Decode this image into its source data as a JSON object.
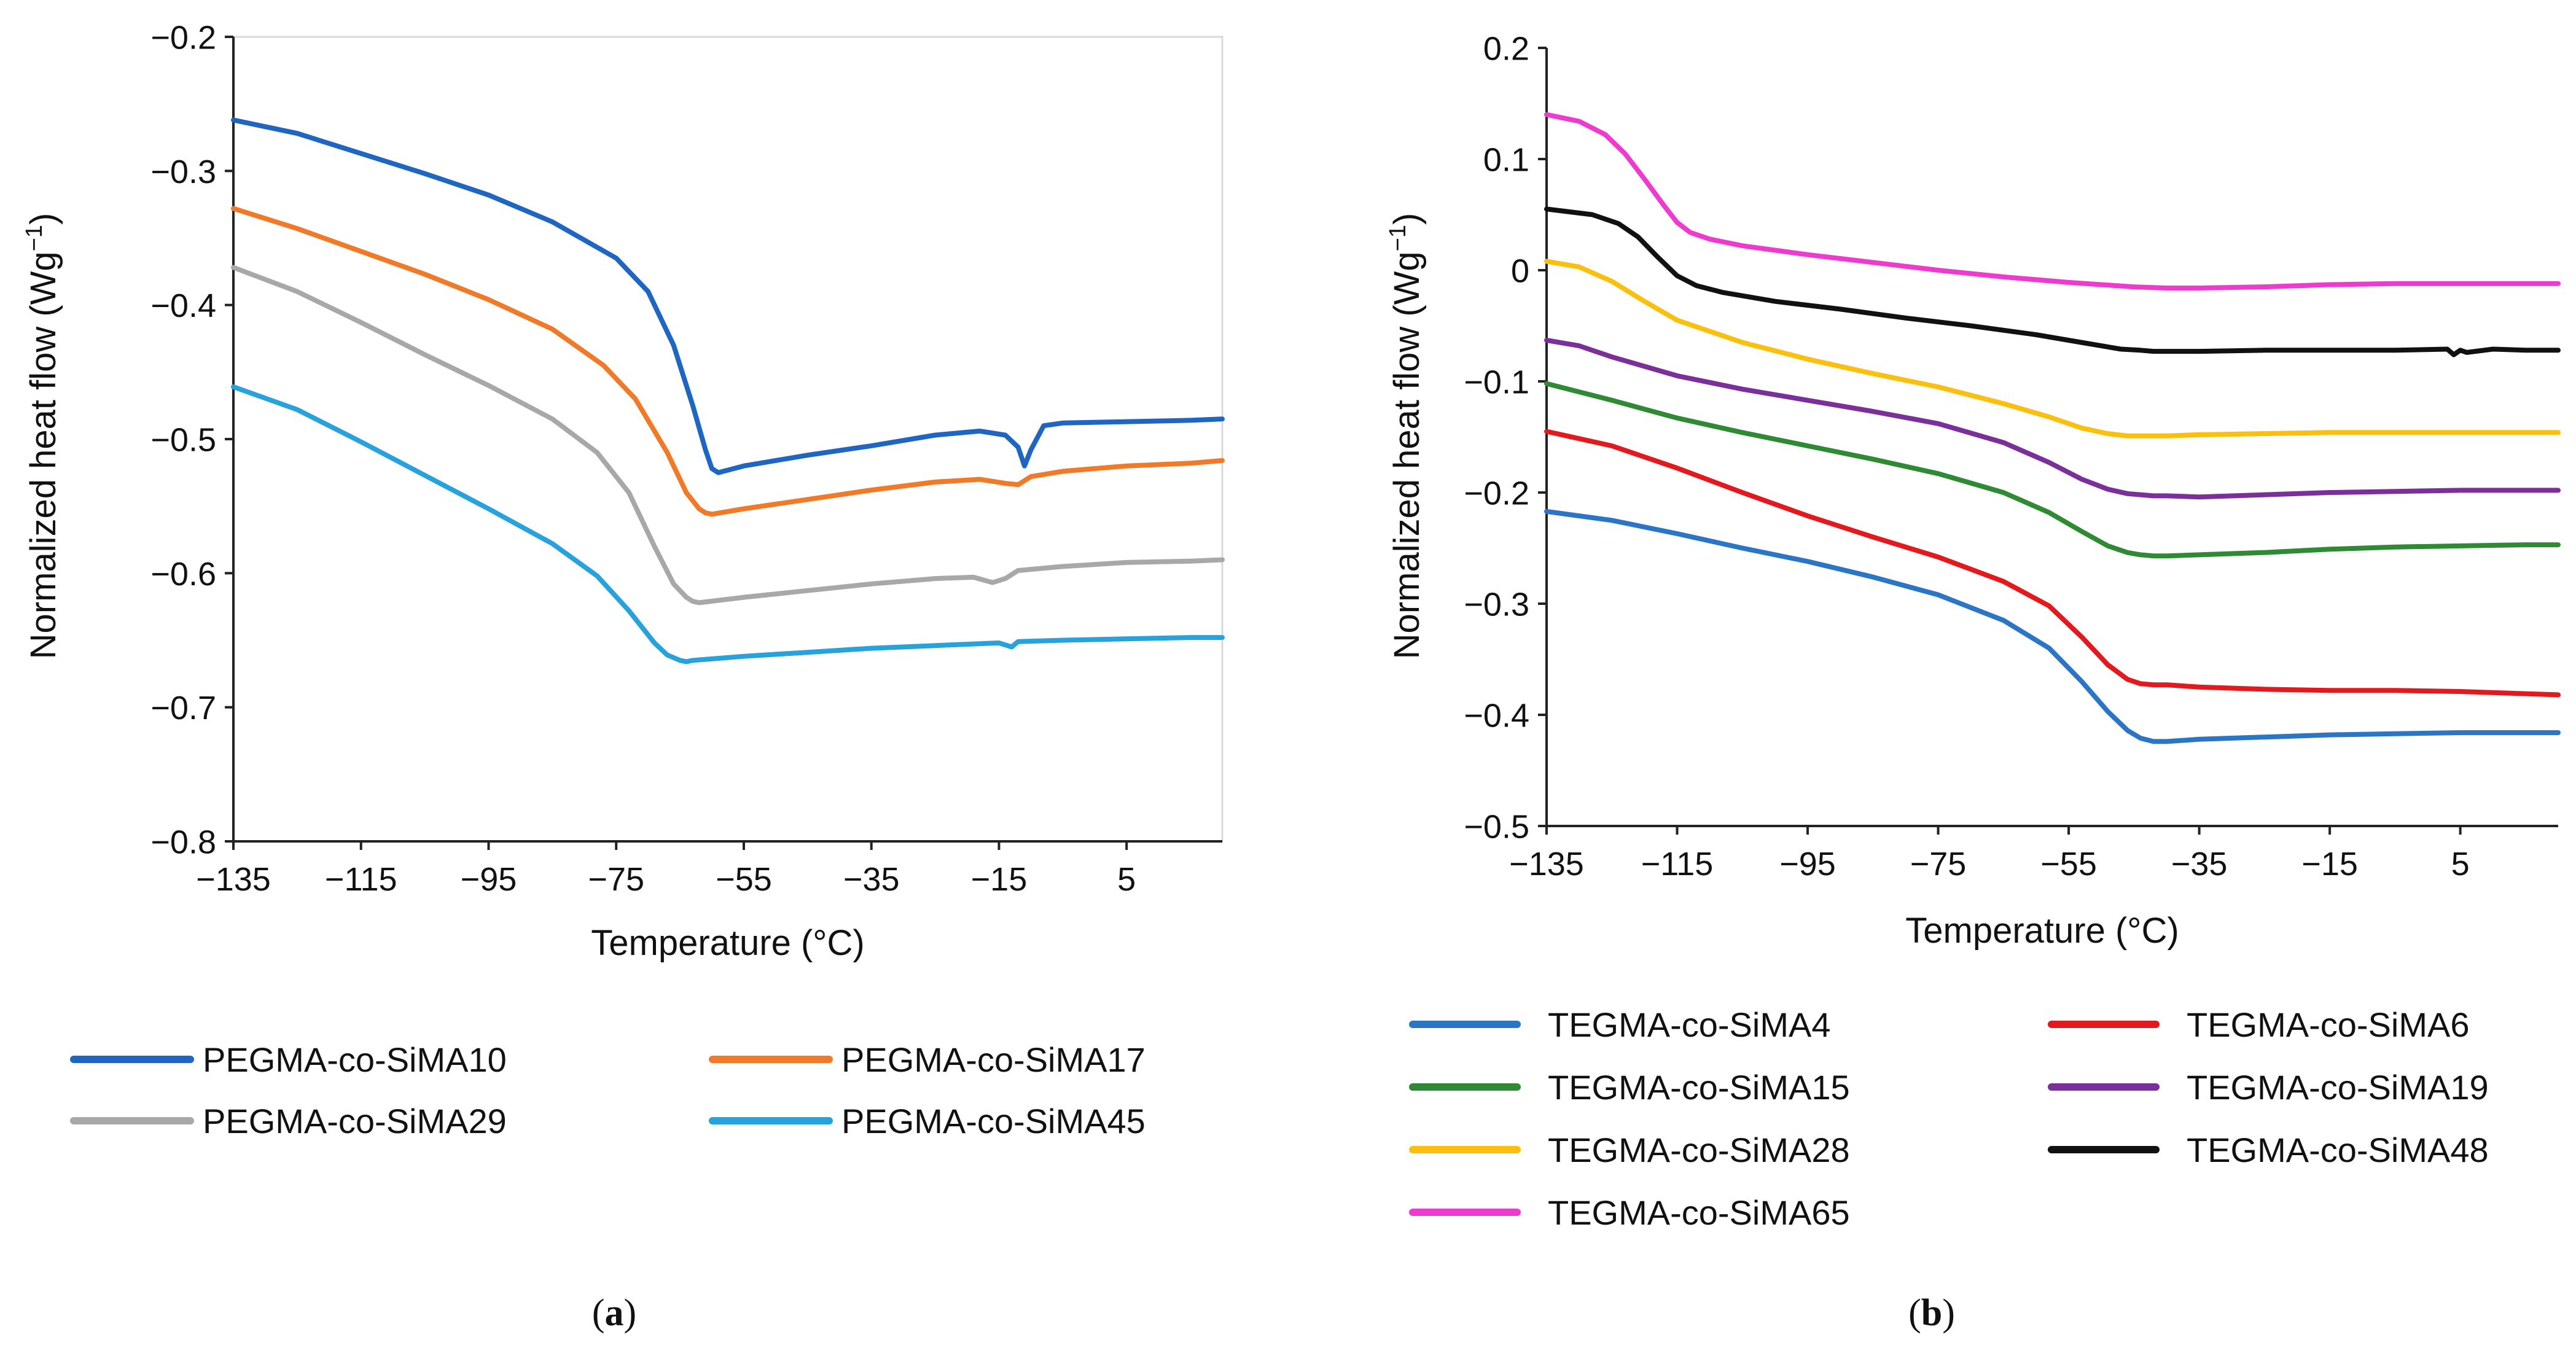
{
  "chart_data": [
    {
      "type": "line",
      "panel_label": "a",
      "xlabel": "Temperature (°C)",
      "ylabel": "Normalized heat flow (Wg",
      "ylabel_sup": "−1",
      "ylabel_close": ")",
      "xlim": [
        -135,
        20
      ],
      "ylim": [
        -0.8,
        -0.2
      ],
      "xticks": [
        -135,
        -115,
        -95,
        -75,
        -55,
        -35,
        -15,
        5
      ],
      "xtick_labels": [
        "−135",
        "−115",
        "−95",
        "−75",
        "−55",
        "−35",
        "−15",
        "5"
      ],
      "yticks": [
        -0.8,
        -0.7,
        -0.6,
        -0.5,
        -0.4,
        -0.3,
        -0.2
      ],
      "ytick_labels": [
        "−0.8",
        "−0.7",
        "−0.6",
        "−0.5",
        "−0.4",
        "−0.3",
        "−0.2"
      ],
      "grid": false,
      "legend_position": "bottom",
      "series": [
        {
          "name": "PEGMA-co-SiMA10",
          "color": "#1f66c2",
          "x": [
            -135,
            -125,
            -115,
            -105,
            -95,
            -85,
            -75,
            -70,
            -66,
            -63,
            -61,
            -60,
            -59,
            -55,
            -45,
            -35,
            -25,
            -18,
            -14,
            -12,
            -11,
            -10,
            -8,
            -5,
            5,
            15,
            20
          ],
          "y": [
            -0.262,
            -0.272,
            -0.287,
            -0.302,
            -0.318,
            -0.338,
            -0.365,
            -0.39,
            -0.43,
            -0.475,
            -0.508,
            -0.522,
            -0.525,
            -0.52,
            -0.512,
            -0.505,
            -0.497,
            -0.494,
            -0.497,
            -0.506,
            -0.52,
            -0.508,
            -0.49,
            -0.488,
            -0.487,
            -0.486,
            -0.485
          ]
        },
        {
          "name": "PEGMA-co-SiMA17",
          "color": "#f07a28",
          "x": [
            -135,
            -125,
            -115,
            -105,
            -95,
            -85,
            -77,
            -72,
            -67,
            -64,
            -62,
            -61,
            -60,
            -55,
            -45,
            -35,
            -25,
            -18,
            -14,
            -12,
            -10,
            -5,
            5,
            15,
            20
          ],
          "y": [
            -0.328,
            -0.343,
            -0.36,
            -0.377,
            -0.396,
            -0.418,
            -0.445,
            -0.47,
            -0.51,
            -0.54,
            -0.552,
            -0.555,
            -0.556,
            -0.552,
            -0.545,
            -0.538,
            -0.532,
            -0.53,
            -0.533,
            -0.534,
            -0.528,
            -0.524,
            -0.52,
            -0.518,
            -0.516
          ]
        },
        {
          "name": "PEGMA-co-SiMA29",
          "color": "#a8a8a8",
          "x": [
            -135,
            -125,
            -115,
            -105,
            -95,
            -85,
            -78,
            -73,
            -69,
            -66,
            -64,
            -63,
            -62,
            -55,
            -45,
            -35,
            -25,
            -19,
            -16,
            -14,
            -12,
            -5,
            5,
            15,
            20
          ],
          "y": [
            -0.372,
            -0.39,
            -0.413,
            -0.437,
            -0.46,
            -0.485,
            -0.51,
            -0.54,
            -0.58,
            -0.608,
            -0.618,
            -0.621,
            -0.622,
            -0.618,
            -0.613,
            -0.608,
            -0.604,
            -0.603,
            -0.607,
            -0.604,
            -0.598,
            -0.595,
            -0.592,
            -0.591,
            -0.59
          ]
        },
        {
          "name": "PEGMA-co-SiMA45",
          "color": "#27a2dc",
          "x": [
            -135,
            -125,
            -115,
            -105,
            -95,
            -85,
            -78,
            -73,
            -69,
            -67,
            -65,
            -64,
            -63,
            -55,
            -45,
            -35,
            -25,
            -15,
            -13,
            -12,
            -5,
            5,
            15,
            20
          ],
          "y": [
            -0.461,
            -0.478,
            -0.502,
            -0.527,
            -0.552,
            -0.578,
            -0.602,
            -0.628,
            -0.652,
            -0.661,
            -0.665,
            -0.666,
            -0.665,
            -0.662,
            -0.659,
            -0.656,
            -0.654,
            -0.652,
            -0.655,
            -0.651,
            -0.65,
            -0.649,
            -0.648,
            -0.648
          ]
        }
      ]
    },
    {
      "type": "line",
      "panel_label": "b",
      "xlabel": "Temperature (°C)",
      "ylabel": "Normalized heat flow (Wg",
      "ylabel_sup": "−1",
      "ylabel_close": ")",
      "xlim": [
        -135,
        20
      ],
      "ylim": [
        -0.5,
        0.2
      ],
      "xticks": [
        -135,
        -115,
        -95,
        -75,
        -55,
        -35,
        -15,
        5
      ],
      "xtick_labels": [
        "−135",
        "−115",
        "−95",
        "−75",
        "−55",
        "−35",
        "−15",
        "5"
      ],
      "yticks": [
        -0.5,
        -0.4,
        -0.3,
        -0.2,
        -0.1,
        0,
        0.1,
        0.2
      ],
      "ytick_labels": [
        "−0.5",
        "−0.4",
        "−0.3",
        "−0.2",
        "−0.1",
        "0",
        "0.1",
        "0.2"
      ],
      "grid": false,
      "legend_position": "bottom",
      "series": [
        {
          "name": "TEGMA-co-SiMA4",
          "color": "#2a75c6",
          "x": [
            -135,
            -125,
            -115,
            -105,
            -95,
            -85,
            -75,
            -65,
            -58,
            -53,
            -49,
            -46,
            -44,
            -42,
            -40,
            -35,
            -25,
            -15,
            -5,
            5,
            15,
            20
          ],
          "y": [
            -0.217,
            -0.225,
            -0.237,
            -0.25,
            -0.262,
            -0.276,
            -0.292,
            -0.315,
            -0.34,
            -0.37,
            -0.397,
            -0.414,
            -0.421,
            -0.424,
            -0.424,
            -0.422,
            -0.42,
            -0.418,
            -0.417,
            -0.416,
            -0.416,
            -0.416
          ]
        },
        {
          "name": "TEGMA-co-SiMA6",
          "color": "#e3191e",
          "x": [
            -135,
            -125,
            -115,
            -105,
            -95,
            -85,
            -75,
            -65,
            -58,
            -53,
            -49,
            -46,
            -44,
            -42,
            -40,
            -35,
            -25,
            -15,
            -5,
            5,
            15,
            20
          ],
          "y": [
            -0.145,
            -0.158,
            -0.178,
            -0.2,
            -0.221,
            -0.24,
            -0.258,
            -0.28,
            -0.302,
            -0.33,
            -0.355,
            -0.368,
            -0.372,
            -0.373,
            -0.373,
            -0.375,
            -0.377,
            -0.378,
            -0.378,
            -0.379,
            -0.381,
            -0.382
          ]
        },
        {
          "name": "TEGMA-co-SiMA15",
          "color": "#2e8b33",
          "x": [
            -135,
            -125,
            -115,
            -105,
            -95,
            -85,
            -75,
            -65,
            -58,
            -53,
            -49,
            -46,
            -44,
            -42,
            -40,
            -35,
            -25,
            -15,
            -5,
            5,
            15,
            20
          ],
          "y": [
            -0.102,
            -0.117,
            -0.133,
            -0.146,
            -0.158,
            -0.17,
            -0.183,
            -0.2,
            -0.218,
            -0.235,
            -0.248,
            -0.254,
            -0.256,
            -0.257,
            -0.257,
            -0.256,
            -0.254,
            -0.251,
            -0.249,
            -0.248,
            -0.247,
            -0.247
          ]
        },
        {
          "name": "TEGMA-co-SiMA19",
          "color": "#7b2f9a",
          "x": [
            -135,
            -130,
            -125,
            -115,
            -105,
            -95,
            -85,
            -75,
            -65,
            -58,
            -53,
            -49,
            -46,
            -44,
            -42,
            -40,
            -35,
            -25,
            -15,
            -5,
            5,
            15,
            20
          ],
          "y": [
            -0.063,
            -0.068,
            -0.078,
            -0.095,
            -0.107,
            -0.117,
            -0.127,
            -0.138,
            -0.155,
            -0.173,
            -0.188,
            -0.197,
            -0.201,
            -0.202,
            -0.203,
            -0.203,
            -0.204,
            -0.202,
            -0.2,
            -0.199,
            -0.198,
            -0.198,
            -0.198
          ]
        },
        {
          "name": "TEGMA-co-SiMA28",
          "color": "#fbbf0e",
          "x": [
            -135,
            -130,
            -125,
            -120,
            -115,
            -105,
            -95,
            -85,
            -75,
            -65,
            -58,
            -53,
            -49,
            -46,
            -44,
            -42,
            -40,
            -35,
            -25,
            -15,
            -5,
            5,
            15,
            20
          ],
          "y": [
            0.008,
            0.003,
            -0.01,
            -0.028,
            -0.045,
            -0.065,
            -0.08,
            -0.093,
            -0.105,
            -0.12,
            -0.132,
            -0.142,
            -0.147,
            -0.149,
            -0.149,
            -0.149,
            -0.149,
            -0.148,
            -0.147,
            -0.146,
            -0.146,
            -0.146,
            -0.146,
            -0.146
          ]
        },
        {
          "name": "TEGMA-co-SiMA48",
          "color": "#111111",
          "x": [
            -135,
            -128,
            -124,
            -121,
            -118,
            -115,
            -112,
            -108,
            -100,
            -90,
            -80,
            -70,
            -60,
            -52,
            -47,
            -44,
            -42,
            -40,
            -35,
            -25,
            -15,
            -5,
            3,
            4,
            5,
            6,
            10,
            15,
            20
          ],
          "y": [
            0.055,
            0.05,
            0.042,
            0.03,
            0.012,
            -0.005,
            -0.014,
            -0.02,
            -0.028,
            -0.035,
            -0.043,
            -0.05,
            -0.058,
            -0.066,
            -0.071,
            -0.072,
            -0.073,
            -0.073,
            -0.073,
            -0.072,
            -0.072,
            -0.072,
            -0.071,
            -0.076,
            -0.072,
            -0.074,
            -0.071,
            -0.072,
            -0.072
          ]
        },
        {
          "name": "TEGMA-co-SiMA65",
          "color": "#ef3ad0",
          "x": [
            -135,
            -130,
            -126,
            -123,
            -120,
            -117,
            -115,
            -113,
            -110,
            -105,
            -95,
            -85,
            -75,
            -65,
            -55,
            -45,
            -40,
            -35,
            -25,
            -15,
            -5,
            5,
            15,
            20
          ],
          "y": [
            0.14,
            0.134,
            0.122,
            0.105,
            0.082,
            0.058,
            0.043,
            0.034,
            0.028,
            0.022,
            0.014,
            0.007,
            0.0,
            -0.006,
            -0.011,
            -0.015,
            -0.016,
            -0.016,
            -0.015,
            -0.013,
            -0.012,
            -0.012,
            -0.012,
            -0.012
          ]
        }
      ]
    }
  ]
}
